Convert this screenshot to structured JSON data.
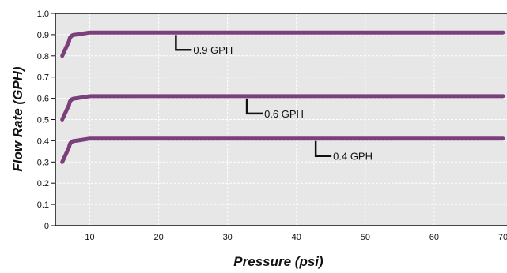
{
  "chart_data": {
    "type": "line",
    "xlabel": "Pressure (psi)",
    "ylabel": "Flow Rate (GPH)",
    "xlim": [
      5,
      70
    ],
    "ylim": [
      0,
      1.0
    ],
    "x_ticks": [
      "10",
      "20",
      "30",
      "40",
      "50",
      "60",
      "70"
    ],
    "y_ticks": [
      "0",
      "0.1",
      "0.2",
      "0.3",
      "0.4",
      "0.5",
      "0.6",
      "0.7",
      "0.8",
      "0.9",
      "1.0"
    ],
    "grid": true,
    "series_color": "#7b3f7c",
    "background_color": "#e7e7e7",
    "series": [
      {
        "x": [
          6,
          7,
          8,
          10,
          70
        ],
        "values": [
          0.8,
          0.87,
          0.9,
          0.91,
          0.91
        ]
      },
      {
        "x": [
          6,
          7,
          8,
          10,
          70
        ],
        "values": [
          0.5,
          0.57,
          0.6,
          0.61,
          0.61
        ]
      },
      {
        "x": [
          6,
          7,
          8,
          10,
          70
        ],
        "values": [
          0.3,
          0.37,
          0.4,
          0.41,
          0.41
        ]
      }
    ],
    "annotations": [
      {
        "text": "0.9 GPH",
        "x": 22.5,
        "y": 0.91
      },
      {
        "text": "0.6 GPH",
        "x": 32.8,
        "y": 0.61
      },
      {
        "text": "0.4 GPH",
        "x": 42.8,
        "y": 0.41
      }
    ]
  }
}
